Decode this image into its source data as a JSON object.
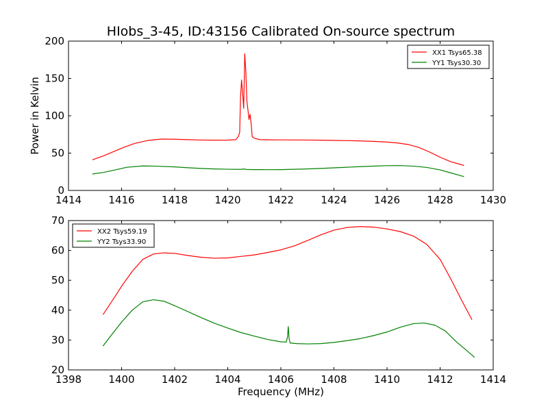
{
  "chart_data": [
    {
      "type": "line",
      "title": "HIobs_3-45, ID:43156 Calibrated On-source spectrum",
      "xlabel": "",
      "ylabel": "Power in Kelvin",
      "xlim": [
        1414,
        1430
      ],
      "ylim": [
        0,
        200
      ],
      "xticks": [
        "1414",
        "1416",
        "1418",
        "1420",
        "1422",
        "1424",
        "1426",
        "1428",
        "1430"
      ],
      "yticks": [
        "0",
        "50",
        "100",
        "150",
        "200"
      ],
      "legend_position": "top-right",
      "series": [
        {
          "name": "XX1 Tsys65.38",
          "color": "#ff0000",
          "points": [
            [
              1414.9,
              41
            ],
            [
              1415.3,
              46
            ],
            [
              1415.7,
              52
            ],
            [
              1416.1,
              58
            ],
            [
              1416.5,
              63
            ],
            [
              1417.0,
              67
            ],
            [
              1417.5,
              68.8
            ],
            [
              1418.0,
              68.6
            ],
            [
              1418.5,
              68
            ],
            [
              1419.0,
              67.5
            ],
            [
              1419.5,
              67.3
            ],
            [
              1420.0,
              67.4
            ],
            [
              1420.3,
              68
            ],
            [
              1420.4,
              72
            ],
            [
              1420.45,
              78
            ],
            [
              1420.48,
              125
            ],
            [
              1420.52,
              148
            ],
            [
              1420.56,
              130
            ],
            [
              1420.6,
              110
            ],
            [
              1420.64,
              183
            ],
            [
              1420.68,
              160
            ],
            [
              1420.72,
              120
            ],
            [
              1420.76,
              108
            ],
            [
              1420.8,
              95
            ],
            [
              1420.84,
              102
            ],
            [
              1420.88,
              90
            ],
            [
              1420.92,
              72
            ],
            [
              1421.0,
              70
            ],
            [
              1421.2,
              68
            ],
            [
              1421.6,
              67.8
            ],
            [
              1422.0,
              67.7
            ],
            [
              1422.5,
              67.6
            ],
            [
              1423.0,
              67.5
            ],
            [
              1423.5,
              67.3
            ],
            [
              1424.0,
              67
            ],
            [
              1424.5,
              66.7
            ],
            [
              1425.0,
              66.3
            ],
            [
              1425.5,
              65.7
            ],
            [
              1426.0,
              64.8
            ],
            [
              1426.4,
              63.5
            ],
            [
              1426.8,
              61.5
            ],
            [
              1427.2,
              57.5
            ],
            [
              1427.6,
              51.5
            ],
            [
              1428.0,
              44.5
            ],
            [
              1428.4,
              38.5
            ],
            [
              1428.9,
              33.5
            ]
          ]
        },
        {
          "name": "YY1 Tsys30.30",
          "color": "#008000",
          "points": [
            [
              1414.9,
              22
            ],
            [
              1415.3,
              24
            ],
            [
              1415.7,
              27
            ],
            [
              1416.2,
              31
            ],
            [
              1416.8,
              32.8
            ],
            [
              1417.3,
              32.5
            ],
            [
              1418.0,
              31.5
            ],
            [
              1418.5,
              30.4
            ],
            [
              1419.0,
              29.5
            ],
            [
              1419.5,
              28.8
            ],
            [
              1420.0,
              28.4
            ],
            [
              1420.5,
              28.2
            ],
            [
              1420.6,
              28.8
            ],
            [
              1420.7,
              28.1
            ],
            [
              1421.0,
              27.9
            ],
            [
              1421.5,
              27.8
            ],
            [
              1422.0,
              27.9
            ],
            [
              1422.5,
              28.3
            ],
            [
              1423.0,
              28.8
            ],
            [
              1423.5,
              29.5
            ],
            [
              1424.0,
              30.3
            ],
            [
              1424.5,
              31.1
            ],
            [
              1425.0,
              31.9
            ],
            [
              1425.5,
              32.6
            ],
            [
              1426.0,
              33.2
            ],
            [
              1426.5,
              33.3
            ],
            [
              1427.0,
              32.5
            ],
            [
              1427.5,
              30.8
            ],
            [
              1428.0,
              27.5
            ],
            [
              1428.4,
              23.5
            ],
            [
              1428.9,
              18.5
            ]
          ]
        }
      ]
    },
    {
      "type": "line",
      "title": "",
      "xlabel": "Frequency (MHz)",
      "ylabel": "",
      "xlim": [
        1398,
        1414
      ],
      "ylim": [
        20,
        70
      ],
      "xticks": [
        "1398",
        "1400",
        "1402",
        "1404",
        "1406",
        "1408",
        "1410",
        "1412",
        "1414"
      ],
      "yticks": [
        "20",
        "30",
        "40",
        "50",
        "60",
        "70"
      ],
      "legend_position": "top-left",
      "series": [
        {
          "name": "XX2 Tsys59.19",
          "color": "#ff0000",
          "points": [
            [
              1399.3,
              38.5
            ],
            [
              1399.6,
              42.5
            ],
            [
              1400.0,
              48
            ],
            [
              1400.4,
              53
            ],
            [
              1400.8,
              57
            ],
            [
              1401.2,
              58.8
            ],
            [
              1401.6,
              59.2
            ],
            [
              1402.0,
              59
            ],
            [
              1402.5,
              58.3
            ],
            [
              1403.0,
              57.7
            ],
            [
              1403.5,
              57.4
            ],
            [
              1404.0,
              57.5
            ],
            [
              1404.5,
              58
            ],
            [
              1405.0,
              58.5
            ],
            [
              1405.5,
              59.3
            ],
            [
              1406.0,
              60.2
            ],
            [
              1406.5,
              61.5
            ],
            [
              1407.0,
              63.3
            ],
            [
              1407.5,
              65.2
            ],
            [
              1408.0,
              66.8
            ],
            [
              1408.5,
              67.7
            ],
            [
              1409.0,
              68
            ],
            [
              1409.5,
              67.8
            ],
            [
              1410.0,
              67.2
            ],
            [
              1410.5,
              66.3
            ],
            [
              1411.0,
              64.8
            ],
            [
              1411.5,
              62
            ],
            [
              1412.0,
              57
            ],
            [
              1412.4,
              50.5
            ],
            [
              1412.8,
              43.5
            ],
            [
              1413.2,
              36.8
            ]
          ]
        },
        {
          "name": "YY2 Tsys33.90",
          "color": "#008000",
          "points": [
            [
              1399.3,
              28
            ],
            [
              1399.6,
              31.5
            ],
            [
              1400.0,
              36
            ],
            [
              1400.4,
              40
            ],
            [
              1400.8,
              42.8
            ],
            [
              1401.2,
              43.5
            ],
            [
              1401.6,
              43
            ],
            [
              1402.0,
              41.5
            ],
            [
              1402.5,
              39.5
            ],
            [
              1403.0,
              37.5
            ],
            [
              1403.5,
              35.6
            ],
            [
              1404.0,
              34
            ],
            [
              1404.5,
              32.5
            ],
            [
              1405.0,
              31.3
            ],
            [
              1405.5,
              30.2
            ],
            [
              1406.0,
              29.4
            ],
            [
              1406.2,
              29.3
            ],
            [
              1406.25,
              31
            ],
            [
              1406.28,
              34.5
            ],
            [
              1406.31,
              30.5
            ],
            [
              1406.35,
              29
            ],
            [
              1406.6,
              28.8
            ],
            [
              1407.0,
              28.7
            ],
            [
              1407.5,
              28.8
            ],
            [
              1408.0,
              29.2
            ],
            [
              1408.5,
              29.8
            ],
            [
              1409.0,
              30.5
            ],
            [
              1409.5,
              31.5
            ],
            [
              1410.0,
              32.7
            ],
            [
              1410.5,
              34.3
            ],
            [
              1411.0,
              35.5
            ],
            [
              1411.4,
              35.7
            ],
            [
              1411.8,
              35
            ],
            [
              1412.2,
              33
            ],
            [
              1412.6,
              29.5
            ],
            [
              1413.0,
              26.5
            ],
            [
              1413.3,
              24.2
            ]
          ]
        }
      ]
    }
  ]
}
